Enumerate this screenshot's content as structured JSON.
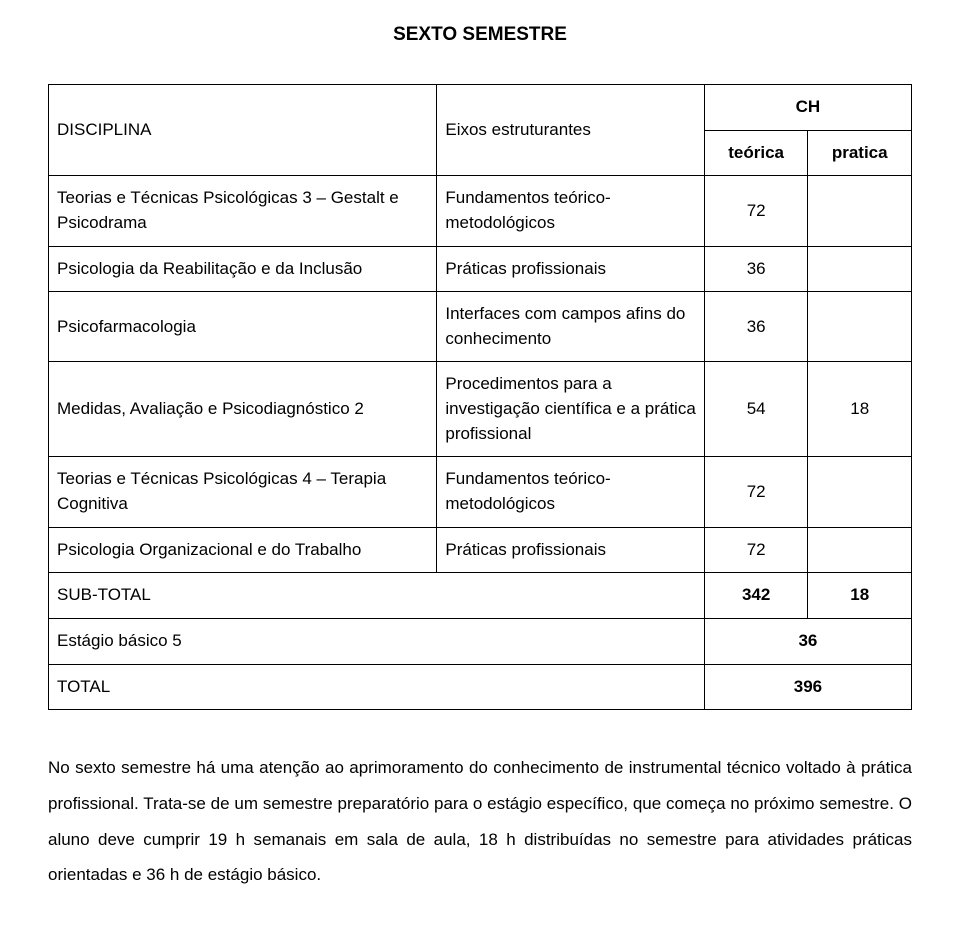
{
  "title": "SEXTO SEMESTRE",
  "headers": {
    "disciplina": "DISCIPLINA",
    "eixos": "Eixos estruturantes",
    "ch": "CH",
    "teorica": "teórica",
    "pratica": "pratica"
  },
  "rows": [
    {
      "disc": "Teorias e Técnicas Psicológicas 3 – Gestalt e Psicodrama",
      "eixos": "Fundamentos teórico-metodológicos",
      "t": "72",
      "p": ""
    },
    {
      "disc": "Psicologia da Reabilitação e da Inclusão",
      "eixos": "Práticas profissionais",
      "t": "36",
      "p": ""
    },
    {
      "disc": "Psicofarmacologia",
      "eixos": "Interfaces com campos afins do conhecimento",
      "t": "36",
      "p": ""
    },
    {
      "disc": "Medidas, Avaliação e Psicodiagnóstico 2",
      "eixos": "Procedimentos para a investigação científica e a prática profissional",
      "t": "54",
      "p": "18"
    },
    {
      "disc": "Teorias e Técnicas Psicológicas 4 – Terapia Cognitiva",
      "eixos": "Fundamentos teórico-metodológicos",
      "t": "72",
      "p": ""
    },
    {
      "disc": "Psicologia Organizacional e do Trabalho",
      "eixos": "Práticas profissionais",
      "t": "72",
      "p": ""
    }
  ],
  "subtotal": {
    "label": "SUB-TOTAL",
    "t": "342",
    "p": "18"
  },
  "estagio": {
    "label": "Estágio básico 5",
    "val": "36"
  },
  "total": {
    "label": "TOTAL",
    "val": "396"
  },
  "bottom": "No sexto semestre há uma atenção ao aprimoramento do conhecimento de instrumental técnico voltado à prática profissional. Trata-se de um semestre preparatório para o estágio específico, que começa no próximo semestre. O aluno deve cumprir 19 h semanais em sala de aula, 18 h distribuídas no semestre para atividades práticas orientadas e 36 h de estágio básico."
}
